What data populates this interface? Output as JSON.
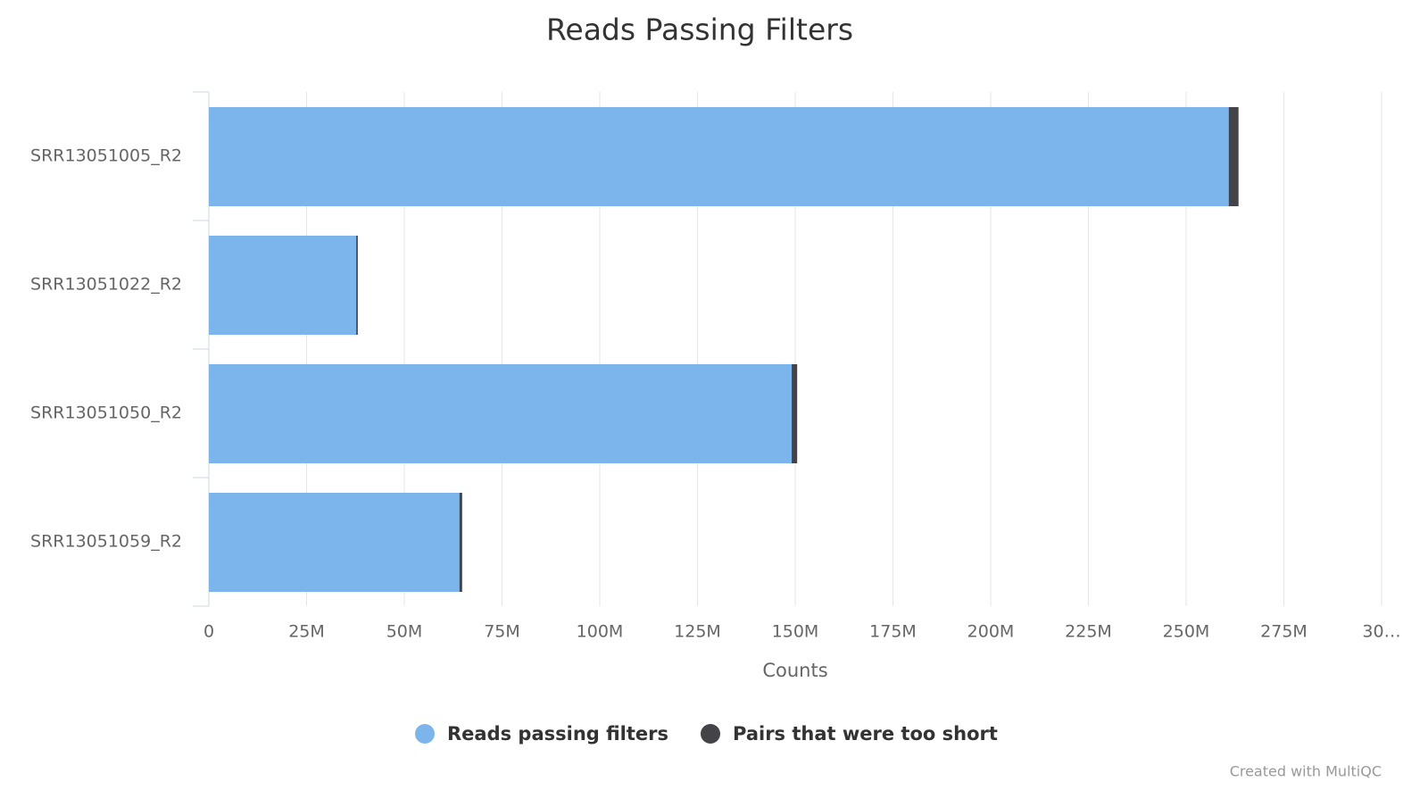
{
  "chart_data": {
    "type": "stacked_bar_horizontal",
    "title": "Reads Passing Filters",
    "categories": [
      "SRR13051005_R2",
      "SRR13051022_R2",
      "SRR13051050_R2",
      "SRR13051059_R2"
    ],
    "series": [
      {
        "name": "Reads passing filters",
        "color": "#7cb5ec",
        "values": [
          260900000,
          37700000,
          149100000,
          64100000
        ]
      },
      {
        "name": "Pairs that were too short",
        "color": "#434348",
        "values": [
          2500000,
          400000,
          1400000,
          700000
        ]
      }
    ],
    "xlabel": "Counts",
    "xlim": [
      0,
      300000000
    ],
    "xticks": [
      0,
      {
        "value": 25000000,
        "label": "25M"
      },
      {
        "value": 50000000,
        "label": "50M"
      },
      {
        "value": 75000000,
        "label": "75M"
      },
      {
        "value": 100000000,
        "label": "100M"
      },
      {
        "value": 125000000,
        "label": "125M"
      },
      {
        "value": 150000000,
        "label": "150M"
      },
      {
        "value": 175000000,
        "label": "175M"
      },
      {
        "value": 200000000,
        "label": "200M"
      },
      {
        "value": 225000000,
        "label": "225M"
      },
      {
        "value": 250000000,
        "label": "250M"
      },
      {
        "value": 275000000,
        "label": "275M"
      },
      {
        "value": 300000000,
        "label": "30…"
      }
    ],
    "grid": true,
    "legend": "bottom",
    "credit": "Created with MultiQC"
  }
}
